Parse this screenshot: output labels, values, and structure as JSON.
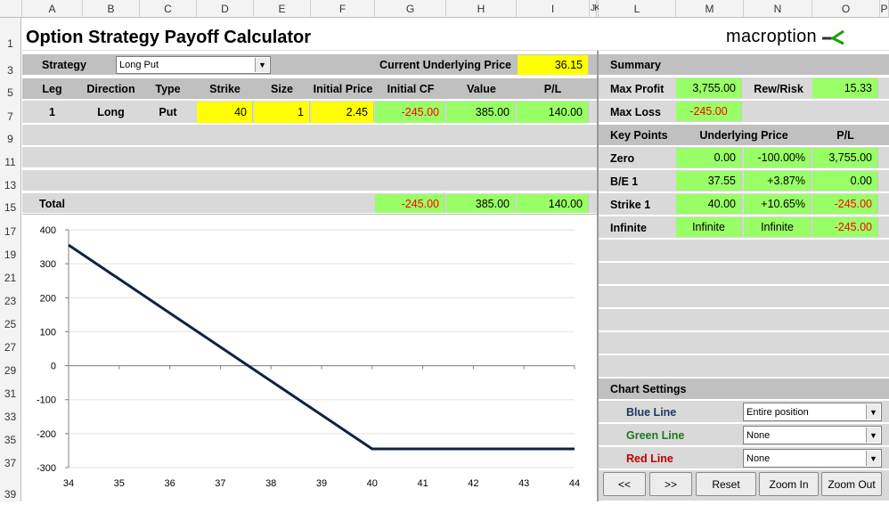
{
  "columns": [
    "A",
    "B",
    "C",
    "D",
    "E",
    "F",
    "G",
    "H",
    "I",
    "J",
    "K",
    "L",
    "M",
    "N",
    "O",
    "P"
  ],
  "rows": [
    "1",
    "3",
    "5",
    "7",
    "9",
    "11",
    "13",
    "15",
    "17",
    "19",
    "21",
    "23",
    "25",
    "27",
    "29",
    "31",
    "33",
    "35",
    "37",
    "39"
  ],
  "title": "Option Strategy Payoff Calculator",
  "logo": {
    "text": "macroption",
    "icon": "macroption-arrow-icon",
    "color": "#18a000"
  },
  "strategy": {
    "label": "Strategy",
    "value": "Long Put"
  },
  "underlying": {
    "label": "Current Underlying Price",
    "value": "36.15"
  },
  "legs_header": [
    "Leg",
    "Direction",
    "Type",
    "Strike",
    "Size",
    "Initial Price",
    "Initial CF",
    "Value",
    "P/L"
  ],
  "legs": [
    {
      "leg": "1",
      "direction": "Long",
      "type": "Put",
      "strike": "40",
      "size": "1",
      "initial_price": "2.45",
      "initial_cf": "-245.00",
      "value": "385.00",
      "pl": "140.00"
    }
  ],
  "total": {
    "label": "Total",
    "initial_cf": "-245.00",
    "value": "385.00",
    "pl": "140.00"
  },
  "summary": {
    "title": "Summary",
    "max_profit_label": "Max Profit",
    "max_profit": "3,755.00",
    "rew_risk_label": "Rew/Risk",
    "rew_risk": "15.33",
    "max_loss_label": "Max Loss",
    "max_loss": "-245.00"
  },
  "key_points": {
    "headers": [
      "Key Points",
      "Underlying Price",
      "P/L"
    ],
    "rows": [
      {
        "name": "Zero",
        "price": "0.00",
        "pct": "-100.00%",
        "pl": "3,755.00"
      },
      {
        "name": "B/E 1",
        "price": "37.55",
        "pct": "+3.87%",
        "pl": "0.00"
      },
      {
        "name": "Strike 1",
        "price": "40.00",
        "pct": "+10.65%",
        "pl": "-245.00"
      },
      {
        "name": "Infinite",
        "price": "Infinite",
        "pct": "Infinite",
        "pl": "-245.00"
      }
    ]
  },
  "chart_settings": {
    "title": "Chart Settings",
    "blue_label": "Blue Line",
    "blue_value": "Entire position",
    "green_label": "Green Line",
    "green_value": "None",
    "red_label": "Red Line",
    "red_value": "None"
  },
  "buttons": {
    "prev": "<<",
    "next": ">>",
    "reset": "Reset",
    "zoom_in": "Zoom In",
    "zoom_out": "Zoom Out"
  },
  "colors": {
    "band": "#c0c0c0",
    "yellow": "#ffff00",
    "green": "#99ff66",
    "line": "#0f2340",
    "negative": "#ff0000"
  },
  "chart_data": {
    "type": "line",
    "x": [
      34,
      35,
      36,
      37,
      37.55,
      38,
      39,
      40,
      41,
      42,
      43,
      44
    ],
    "series": [
      {
        "values": [
          355,
          255,
          155,
          55,
          0,
          -45,
          -145,
          -245,
          -245,
          -245,
          -245,
          -245
        ]
      }
    ],
    "x_ticks": [
      "34",
      "35",
      "36",
      "37",
      "38",
      "39",
      "40",
      "41",
      "42",
      "43",
      "44"
    ],
    "y_ticks": [
      "400",
      "300",
      "200",
      "100",
      "0",
      "-100",
      "-200",
      "-300"
    ],
    "xlim": [
      34,
      44
    ],
    "ylim": [
      -300,
      400
    ],
    "grid": true
  }
}
